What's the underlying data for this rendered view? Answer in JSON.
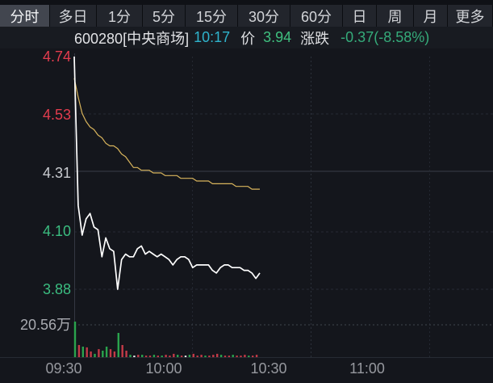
{
  "tabs": {
    "items": [
      {
        "id": "tab-timeshare",
        "label": "分时",
        "selected": true
      },
      {
        "id": "tab-multiday",
        "label": "多日",
        "selected": false
      },
      {
        "id": "tab-1min",
        "label": "1分",
        "selected": false
      },
      {
        "id": "tab-5min",
        "label": "5分",
        "selected": false
      },
      {
        "id": "tab-15min",
        "label": "15分",
        "selected": false
      },
      {
        "id": "tab-30min",
        "label": "30分",
        "selected": false
      },
      {
        "id": "tab-60min",
        "label": "60分",
        "selected": false
      },
      {
        "id": "tab-daily",
        "label": "日",
        "selected": false
      },
      {
        "id": "tab-weekly",
        "label": "周",
        "selected": false
      },
      {
        "id": "tab-monthly",
        "label": "月",
        "selected": false
      },
      {
        "id": "tab-more",
        "label": "更多",
        "selected": false
      }
    ]
  },
  "info": {
    "code": "600280[中央商场]",
    "time": "10:17",
    "price_label": "价",
    "price": "3.94",
    "change_label": "涨跌",
    "change": "-0.37(-8.58%)"
  },
  "colors": {
    "up_red": "#e23c4e",
    "down_green": "#3bbd80",
    "neutral_gray": "#c9cbd0",
    "axis_gray": "#a9abb1",
    "time_cyan": "#2fb3cc",
    "price_line": "#ffffff",
    "avg_line": "#d8b45c",
    "vol_up_green": "#2aa34d",
    "vol_down_red": "#c23a47",
    "vol_flat_white": "#e8e8e8"
  },
  "chart_data": {
    "type": "line",
    "title": "600280 中央商场 分时走势",
    "x_axis": {
      "labels": [
        "09:30",
        "10:00",
        "10:30",
        "11:00"
      ],
      "session_start": "09:30",
      "session_minutes_shown": 47
    },
    "y_axis": {
      "levels": [
        {
          "text": "4.74",
          "value": 4.74,
          "color": "#e23c4e"
        },
        {
          "text": "4.53",
          "value": 4.525,
          "color": "#e23c4e"
        },
        {
          "text": "4.31",
          "value": 4.31,
          "color": "#c9cbd0"
        },
        {
          "text": "4.10",
          "value": 4.095,
          "color": "#3bbd80"
        },
        {
          "text": "3.88",
          "value": 3.88,
          "color": "#3bbd80"
        }
      ],
      "range": [
        3.88,
        4.74
      ],
      "prev_close": 4.31
    },
    "series": [
      {
        "name": "price",
        "color": "#ffffff",
        "width": 1.7,
        "values": [
          4.74,
          4.19,
          4.08,
          4.14,
          4.16,
          4.11,
          4.1,
          4.0,
          4.07,
          4.03,
          4.02,
          3.88,
          3.99,
          4.01,
          4.0,
          4.0,
          4.03,
          4.04,
          4.01,
          4.02,
          4.01,
          4.0,
          4.01,
          4.0,
          3.99,
          3.97,
          3.99,
          4.0,
          4.0,
          3.99,
          3.96,
          3.97,
          3.97,
          3.97,
          3.97,
          3.95,
          3.94,
          3.96,
          3.97,
          3.97,
          3.96,
          3.96,
          3.96,
          3.95,
          3.95,
          3.94,
          3.92,
          3.94
        ]
      },
      {
        "name": "average",
        "color": "#d8b45c",
        "width": 1.2,
        "values": [
          4.66,
          4.59,
          4.53,
          4.5,
          4.48,
          4.47,
          4.45,
          4.44,
          4.42,
          4.41,
          4.41,
          4.4,
          4.38,
          4.37,
          4.35,
          4.33,
          4.33,
          4.32,
          4.32,
          4.32,
          4.31,
          4.31,
          4.31,
          4.3,
          4.3,
          4.3,
          4.3,
          4.29,
          4.29,
          4.29,
          4.29,
          4.28,
          4.28,
          4.28,
          4.28,
          4.27,
          4.27,
          4.27,
          4.27,
          4.27,
          4.27,
          4.26,
          4.26,
          4.26,
          4.26,
          4.25,
          4.25,
          4.25
        ]
      }
    ],
    "volume": {
      "ref_label": "20.56万",
      "ref_wan": 20.56,
      "unit": "万",
      "bars": [
        {
          "v": 22.6,
          "c": "g"
        },
        {
          "v": 7.7,
          "c": "r"
        },
        {
          "v": 6.7,
          "c": "g"
        },
        {
          "v": 6.2,
          "c": "r"
        },
        {
          "v": 3.6,
          "c": "r"
        },
        {
          "v": 2.1,
          "c": "g"
        },
        {
          "v": 5.1,
          "c": "r"
        },
        {
          "v": 4.1,
          "c": "g"
        },
        {
          "v": 6.7,
          "c": "g"
        },
        {
          "v": 5.1,
          "c": "r"
        },
        {
          "v": 3.6,
          "c": "r"
        },
        {
          "v": 15.4,
          "c": "g"
        },
        {
          "v": 7.7,
          "c": "r"
        },
        {
          "v": 4.1,
          "c": "r"
        },
        {
          "v": 1.5,
          "c": "g"
        },
        {
          "v": 1.0,
          "c": "w"
        },
        {
          "v": 1.5,
          "c": "r"
        },
        {
          "v": 1.5,
          "c": "g"
        },
        {
          "v": 1.0,
          "c": "r"
        },
        {
          "v": 1.0,
          "c": "r"
        },
        {
          "v": 1.5,
          "c": "g"
        },
        {
          "v": 1.0,
          "c": "r"
        },
        {
          "v": 1.0,
          "c": "g"
        },
        {
          "v": 1.5,
          "c": "r"
        },
        {
          "v": 1.0,
          "c": "r"
        },
        {
          "v": 2.1,
          "c": "r"
        },
        {
          "v": 1.5,
          "c": "g"
        },
        {
          "v": 1.0,
          "c": "r"
        },
        {
          "v": 1.0,
          "c": "w"
        },
        {
          "v": 1.5,
          "c": "g"
        },
        {
          "v": 2.1,
          "c": "r"
        },
        {
          "v": 1.0,
          "c": "r"
        },
        {
          "v": 1.5,
          "c": "r"
        },
        {
          "v": 1.0,
          "c": "g"
        },
        {
          "v": 1.0,
          "c": "r"
        },
        {
          "v": 1.5,
          "c": "r"
        },
        {
          "v": 2.1,
          "c": "r"
        },
        {
          "v": 1.5,
          "c": "g"
        },
        {
          "v": 1.0,
          "c": "r"
        },
        {
          "v": 1.0,
          "c": "r"
        },
        {
          "v": 1.5,
          "c": "g"
        },
        {
          "v": 1.0,
          "c": "r"
        },
        {
          "v": 1.0,
          "c": "r"
        },
        {
          "v": 1.5,
          "c": "r"
        },
        {
          "v": 1.0,
          "c": "g"
        },
        {
          "v": 1.0,
          "c": "r"
        },
        {
          "v": 1.5,
          "c": "r"
        }
      ]
    }
  }
}
